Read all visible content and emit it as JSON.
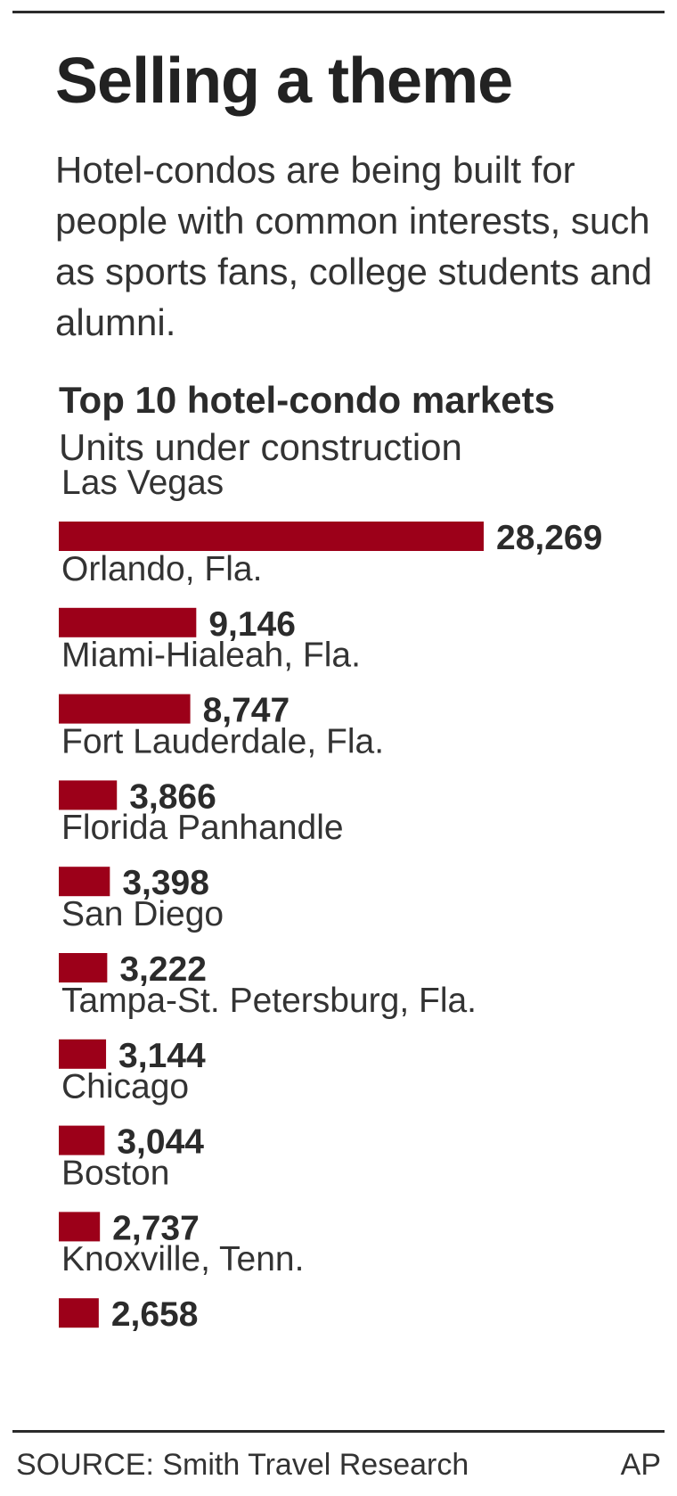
{
  "headline": "Selling a theme",
  "dek": "Hotel-condos are being built for people with common interests, such as sports fans, college students and alumni.",
  "footer": {
    "source": "SOURCE: Smith Travel Research",
    "credit": "AP"
  },
  "colors": {
    "bar": "#9c0019",
    "text": "#2b2b2b"
  },
  "chart_data": {
    "type": "bar",
    "orientation": "horizontal",
    "title": "Top 10 hotel-condo markets",
    "subtitle": "Units under construction",
    "categories": [
      "Las Vegas",
      "Orlando, Fla.",
      "Miami-Hialeah, Fla.",
      "Fort Lauderdale, Fla.",
      "Florida Panhandle",
      "San Diego",
      "Tampa-St. Petersburg, Fla.",
      "Chicago",
      "Boston",
      "Knoxville, Tenn."
    ],
    "values": [
      28269,
      9146,
      8747,
      3866,
      3398,
      3222,
      3144,
      3044,
      2737,
      2658
    ],
    "value_labels": [
      "28,269",
      "9,146",
      "8,747",
      "3,866",
      "3,398",
      "3,222",
      "3,144",
      "3,044",
      "2,737",
      "2,658"
    ],
    "xlim": [
      0,
      28269
    ],
    "grid": false,
    "legend": "none"
  }
}
